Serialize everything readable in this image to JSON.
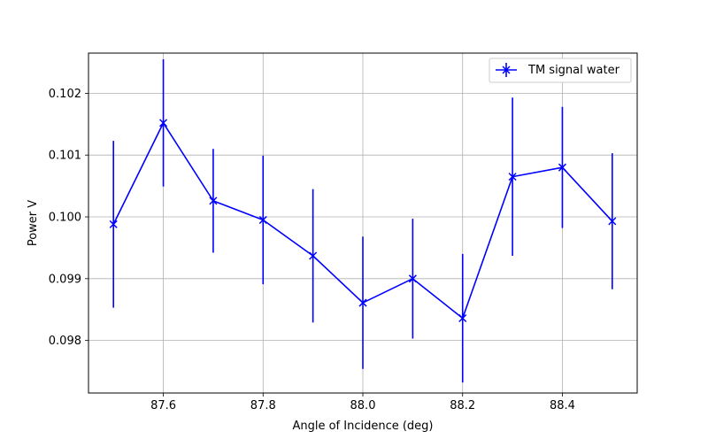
{
  "chart_data": {
    "type": "line",
    "title": "",
    "xlabel": "Angle of Incidence (deg)",
    "ylabel": "Power V",
    "xlim": [
      87.45,
      88.55
    ],
    "ylim": [
      0.09715,
      0.10265
    ],
    "xticks": [
      87.6,
      87.8,
      88.0,
      88.2,
      88.4
    ],
    "xtick_labels": [
      "87.6",
      "87.8",
      "88.0",
      "88.2",
      "88.4"
    ],
    "yticks": [
      0.098,
      0.099,
      0.1,
      0.101,
      0.102
    ],
    "ytick_labels": [
      "0.098",
      "0.099",
      "0.100",
      "0.101",
      "0.102"
    ],
    "grid": true,
    "legend_position": "top-right",
    "series": [
      {
        "name": "TM signal water",
        "color": "#0000ff",
        "marker": "x",
        "x": [
          87.5,
          87.6,
          87.7,
          87.8,
          87.9,
          88.0,
          88.1,
          88.2,
          88.3,
          88.4,
          88.5
        ],
        "y": [
          0.09988,
          0.10152,
          0.10026,
          0.09995,
          0.09937,
          0.09861,
          0.099,
          0.09836,
          0.10065,
          0.1008,
          0.09993
        ],
        "yerr": [
          0.00135,
          0.00103,
          0.00084,
          0.00104,
          0.00108,
          0.00107,
          0.00097,
          0.00104,
          0.00128,
          0.00098,
          0.0011
        ]
      }
    ]
  }
}
